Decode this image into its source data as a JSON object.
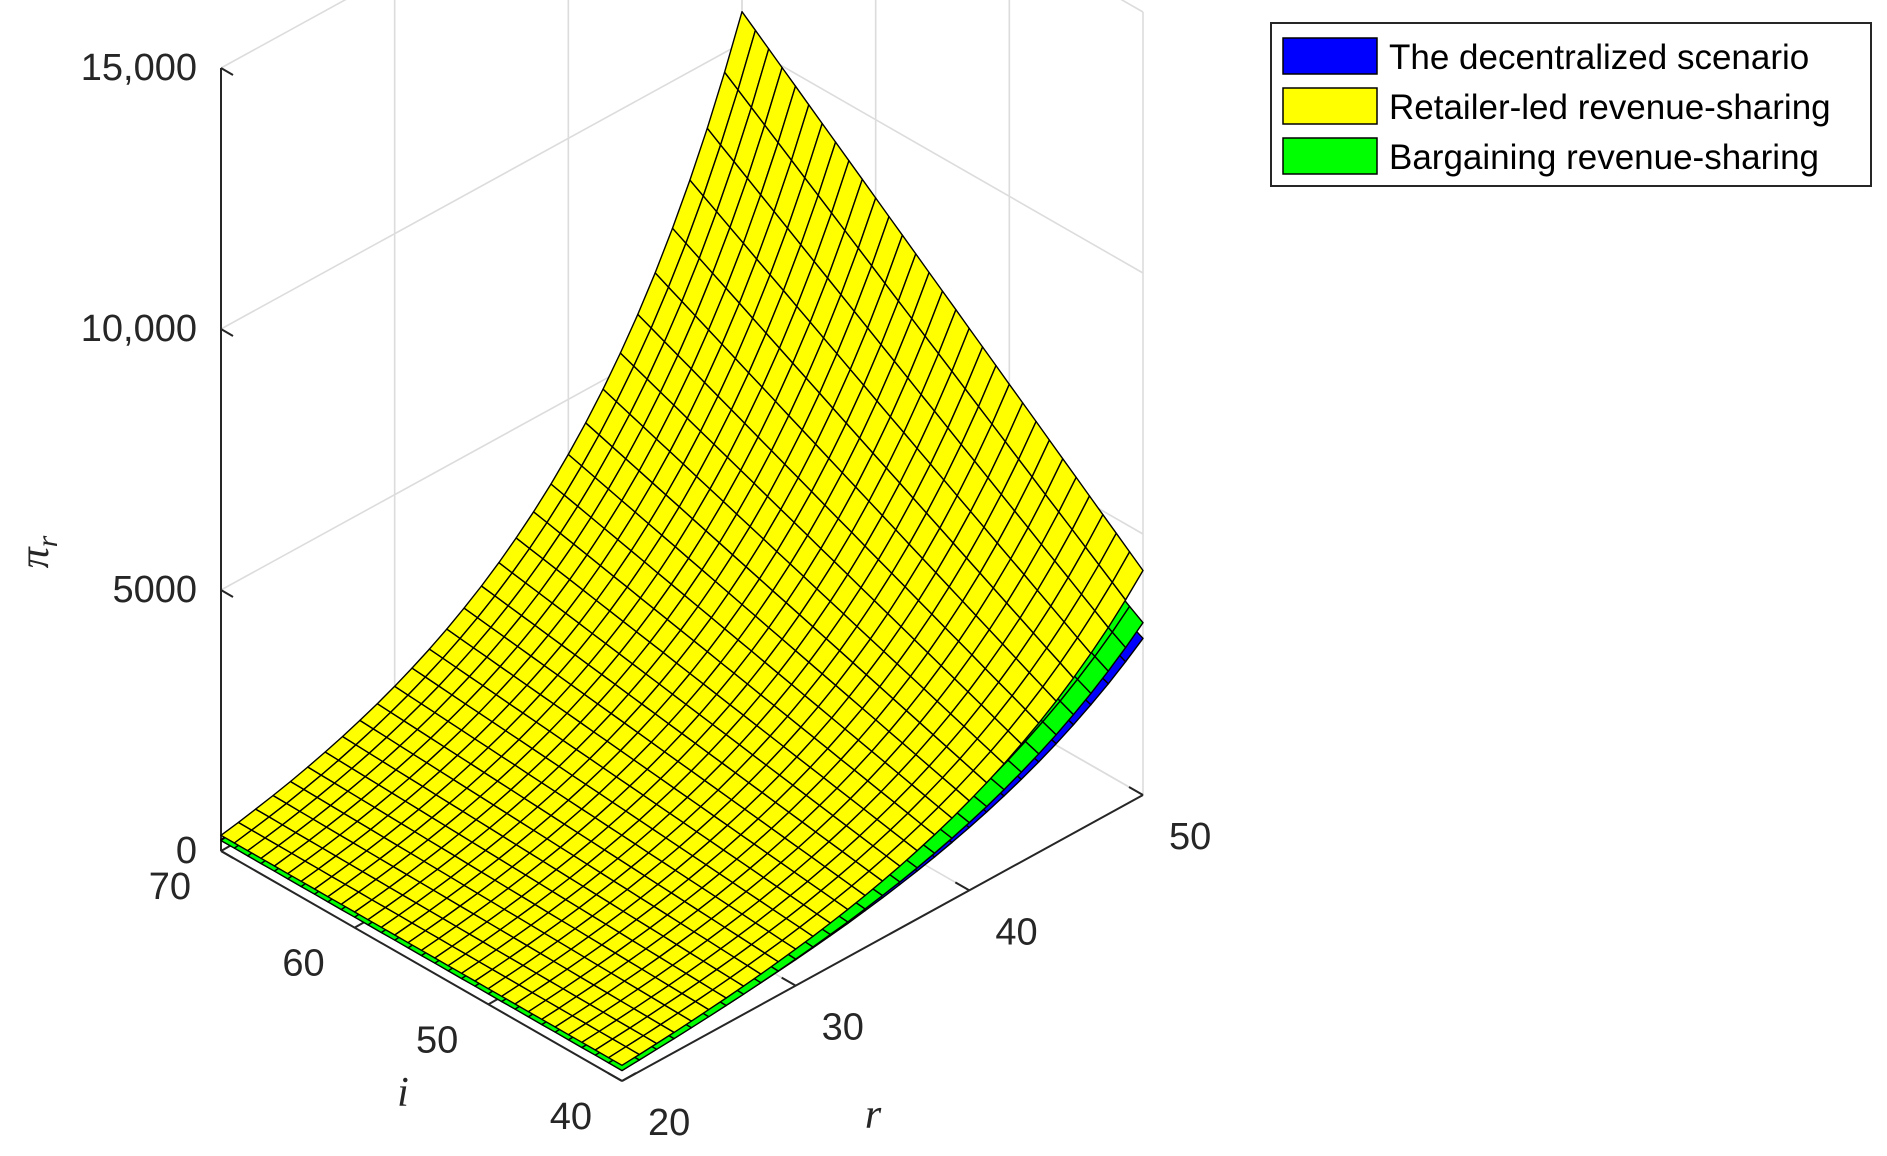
{
  "chart_data": {
    "type": "surface",
    "title": "",
    "axes": {
      "x": {
        "label": "r",
        "range": [
          20,
          50
        ],
        "ticks": [
          20,
          30,
          40,
          50
        ]
      },
      "y": {
        "label": "i",
        "range": [
          40,
          70
        ],
        "ticks": [
          40,
          50,
          60,
          70
        ]
      },
      "z": {
        "label": "π_r",
        "label_main": "π",
        "label_sub": "r",
        "range": [
          0,
          15000
        ],
        "ticks": [
          0,
          5000,
          10000,
          15000
        ],
        "tick_labels": [
          "0",
          "5000",
          "10,000",
          "15,000"
        ]
      }
    },
    "grid": true,
    "legend": {
      "placement": "top-right"
    },
    "series": [
      {
        "name": "The decentralized scenario",
        "color": "#0000ff",
        "corner_values": {
          "r20_i70": 220,
          "r20_i40": 220,
          "r50_i70": 7000,
          "r50_i40": 3000
        }
      },
      {
        "name": "Retailer-led revenue-sharing",
        "color": "#ffff00",
        "corner_values": {
          "r20_i70": 300,
          "r20_i40": 300,
          "r50_i70": 10600,
          "r50_i40": 4300
        }
      },
      {
        "name": "Bargaining revenue-sharing",
        "color": "#00ff00",
        "corner_values": {
          "r20_i70": 200,
          "r20_i40": 200,
          "r50_i70": 8300,
          "r50_i40": 3300
        }
      }
    ]
  }
}
